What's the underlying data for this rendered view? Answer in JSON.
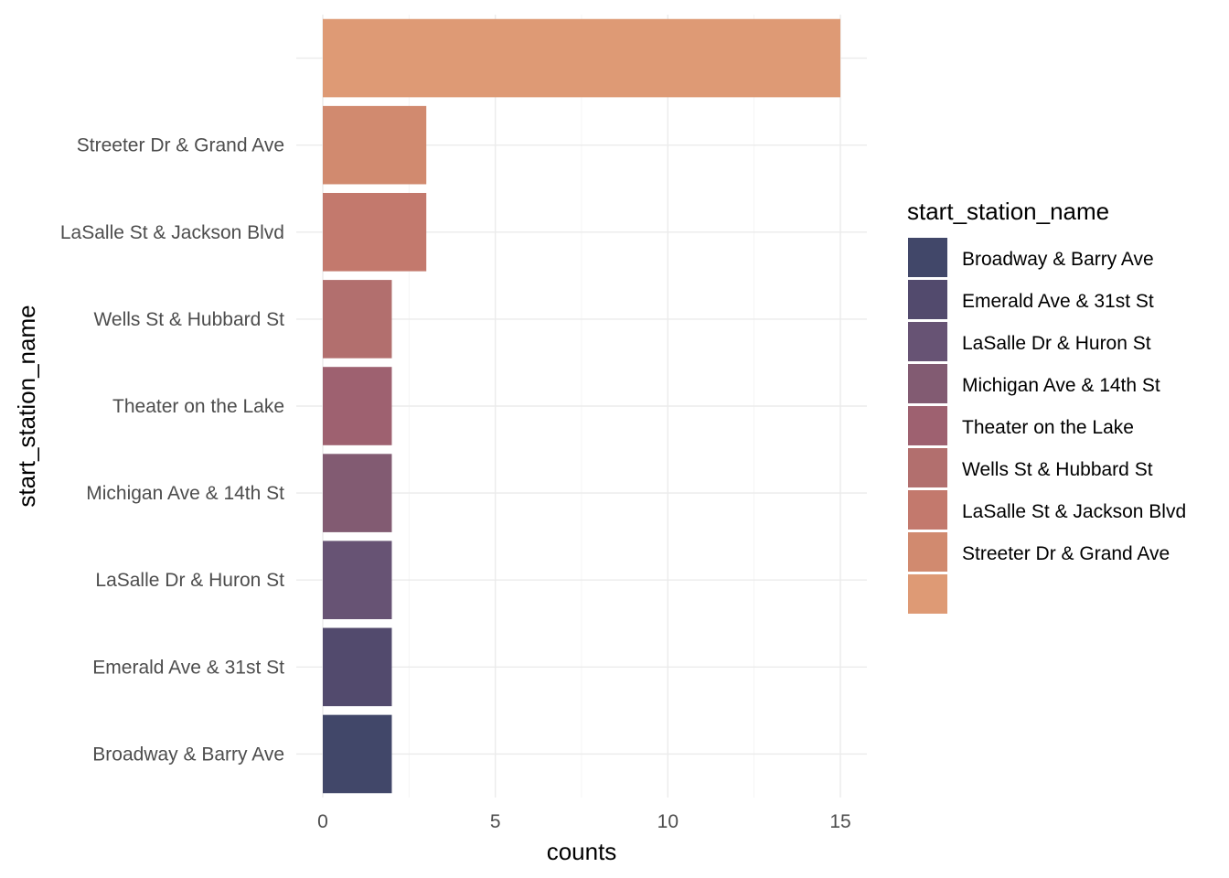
{
  "chart_data": {
    "type": "bar",
    "orientation": "horizontal",
    "xlabel": "counts",
    "ylabel": "start_station_name",
    "xlim": [
      0,
      15.8
    ],
    "x_ticks": [
      0,
      5,
      10,
      15
    ],
    "grid": true,
    "legend_position": "right",
    "legend_title": "start_station_name",
    "categories": [
      "Broadway & Barry Ave",
      "Emerald Ave & 31st St",
      "LaSalle Dr & Huron St",
      "Michigan Ave & 14th St",
      "Theater on the Lake",
      "Wells St & Hubbard St",
      "LaSalle St & Jackson Blvd",
      "Streeter Dr & Grand Ave",
      ""
    ],
    "values": [
      2,
      2,
      2,
      2,
      2,
      2,
      3,
      3,
      15
    ],
    "colors": [
      "#414769",
      "#524a6d",
      "#675374",
      "#825b72",
      "#9e6170",
      "#b26f6e",
      "#c3796d",
      "#d18a6f",
      "#de9a75"
    ]
  }
}
